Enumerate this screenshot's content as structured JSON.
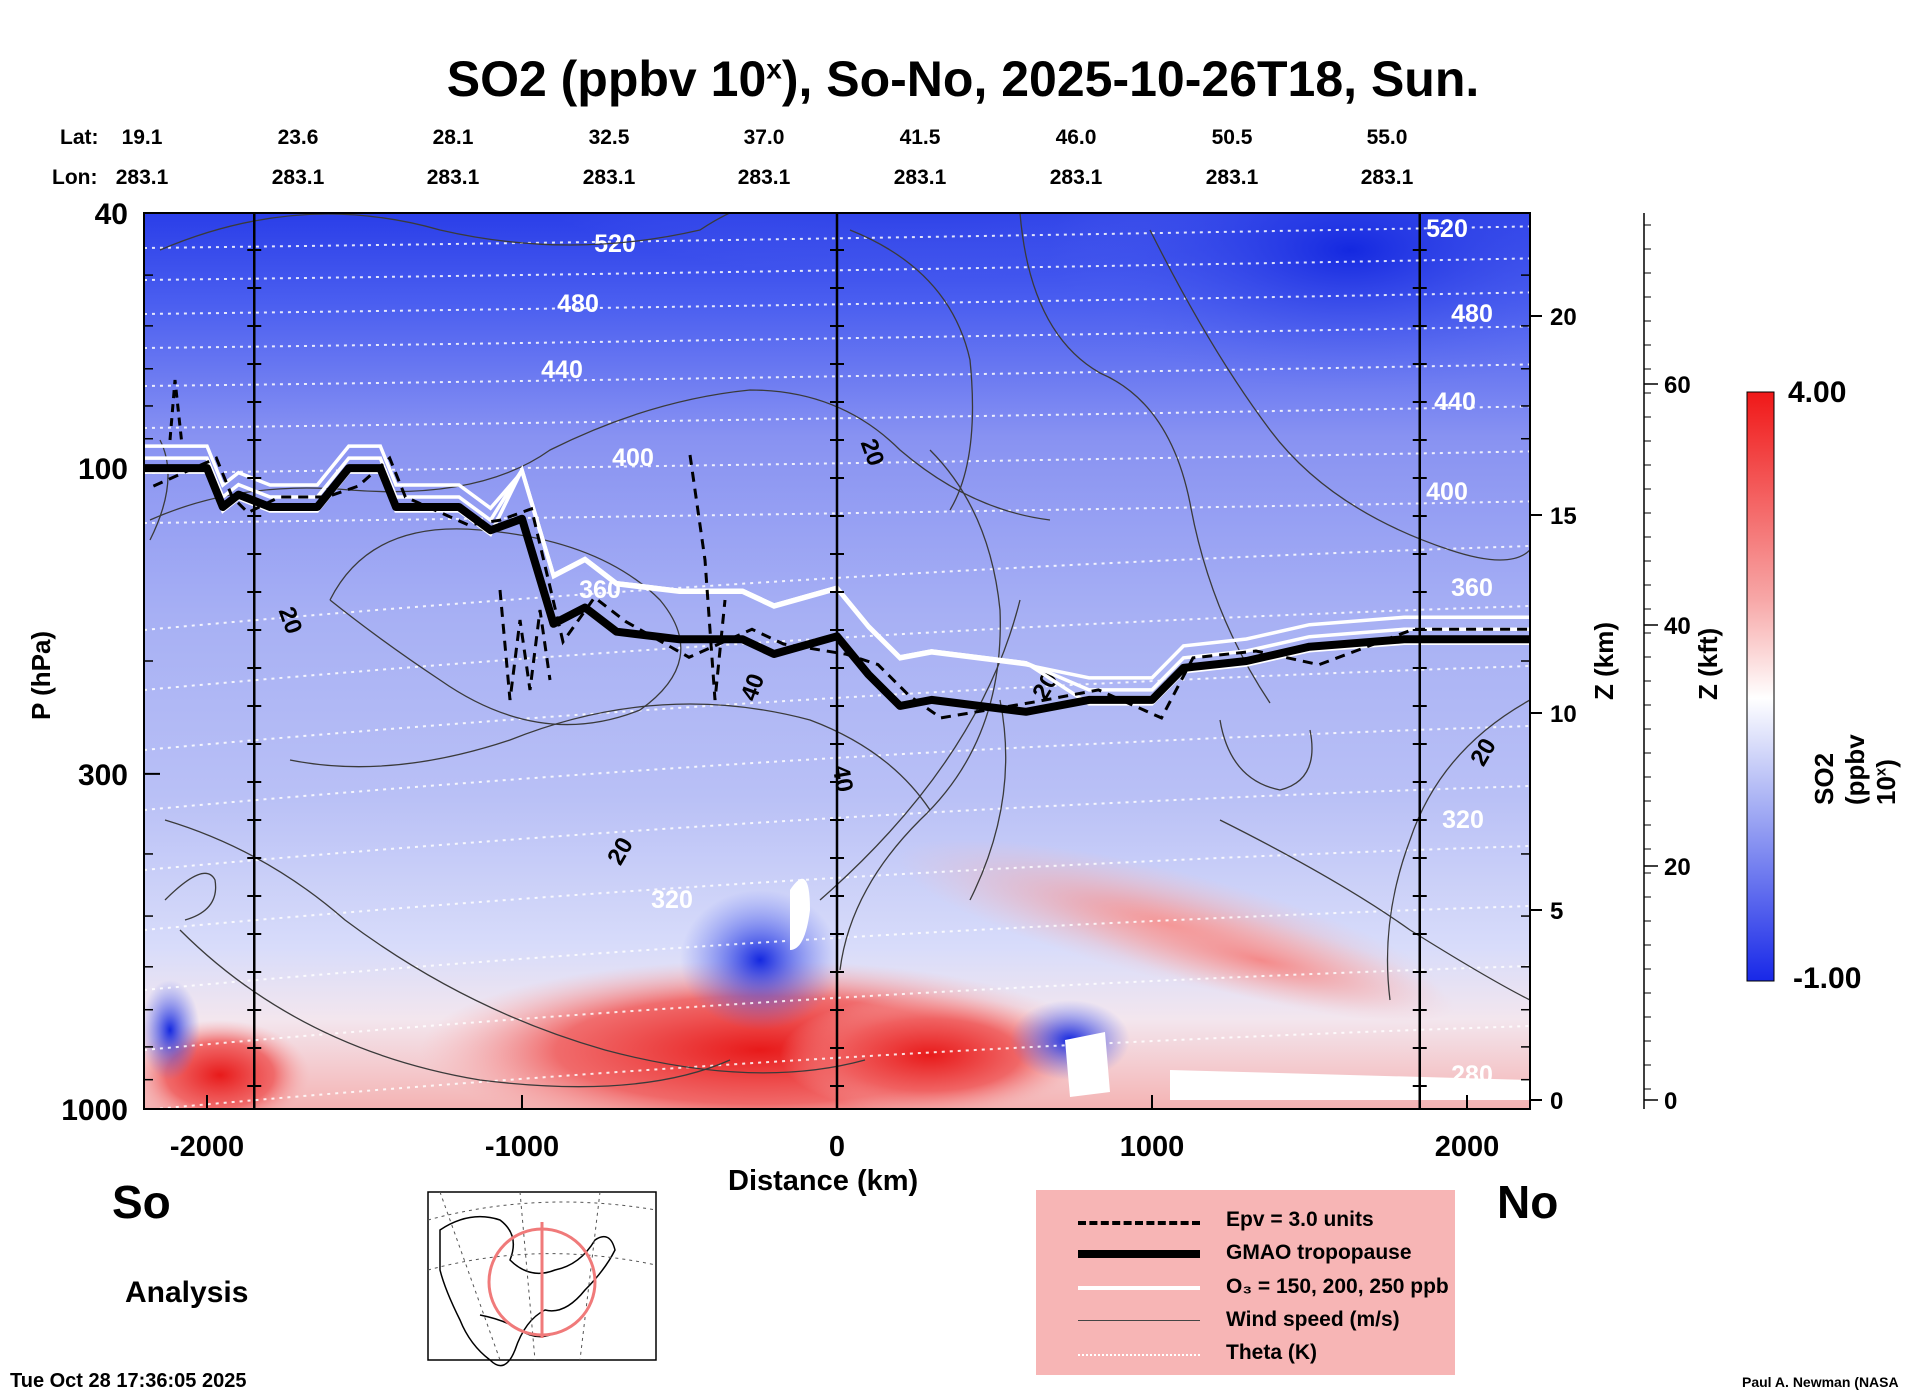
{
  "title": "SO2 (ppbv 10ˣ), So-No, 2025-10-26T18, Sun.",
  "title_parts": {
    "main": "SO2 (ppbv 10",
    "sup": "x",
    "rest": "), So-No, 2025-10-26T18, Sun."
  },
  "header": {
    "lat_label": "Lat:",
    "lon_label": "Lon:",
    "lats": [
      "19.1",
      "23.6",
      "28.1",
      "32.5",
      "37.0",
      "41.5",
      "46.0",
      "50.5",
      "55.0"
    ],
    "lons": [
      "283.1",
      "283.1",
      "283.1",
      "283.1",
      "283.1",
      "283.1",
      "283.1",
      "283.1",
      "283.1"
    ]
  },
  "axes": {
    "ylabel": "P (hPa)",
    "xlabel": "Distance (km)",
    "z_km_label": "Z (km)",
    "z_kft_label": "Z (kft)",
    "p_ticks": [
      "40",
      "100",
      "300",
      "1000"
    ],
    "x_ticks": [
      "-2000",
      "-1000",
      "0",
      "1000",
      "2000"
    ],
    "z_km_ticks": [
      "20",
      "15",
      "10",
      "5",
      "0"
    ],
    "z_kft_ticks": [
      "60",
      "40",
      "20",
      "0"
    ]
  },
  "colorbar": {
    "label": "SO2 (ppbv 10ˣ)",
    "max_label": "4.00",
    "min_label": "-1.00",
    "colors": {
      "high": "#f01818",
      "mid": "#ffffff",
      "low": "#1828e8"
    }
  },
  "endpoints": {
    "left": "So",
    "right": "No"
  },
  "analysis_label": "Analysis",
  "timestamp": "Tue Oct 28 17:36:05 2025",
  "credit": "Paul A. Newman (NASA",
  "legend": {
    "epv": "Epv = 3.0 units",
    "tropopause": "GMAO tropopause",
    "ozone": "O₃ = 150, 200, 250 ppb",
    "wind": "Wind speed (m/s)",
    "theta": "Theta (K)"
  },
  "theta_labels": [
    "520",
    "480",
    "440",
    "400",
    "360",
    "320",
    "280"
  ],
  "wind_labels": [
    "20",
    "40"
  ],
  "chart_data": {
    "type": "heatmap",
    "title": "SO2 (ppbv 10ˣ), So-No, 2025-10-26T18, Sun.",
    "xlabel": "Distance (km)",
    "ylabel": "P (hPa)",
    "xlim": [
      -2200,
      2200
    ],
    "ylim_hpa": [
      1000,
      40
    ],
    "y_scale": "log",
    "colorbar_range": [
      -1.0,
      4.0
    ],
    "tropopause_hpa": [
      [
        -2200,
        100
      ],
      [
        -2000,
        100
      ],
      [
        -1950,
        115
      ],
      [
        -1900,
        110
      ],
      [
        -1800,
        115
      ],
      [
        -1650,
        115
      ],
      [
        -1550,
        100
      ],
      [
        -1450,
        100
      ],
      [
        -1400,
        115
      ],
      [
        -1200,
        115
      ],
      [
        -1100,
        125
      ],
      [
        -1000,
        120
      ],
      [
        -900,
        175
      ],
      [
        -800,
        165
      ],
      [
        -700,
        180
      ],
      [
        -500,
        185
      ],
      [
        -300,
        185
      ],
      [
        -200,
        195
      ],
      [
        0,
        183
      ],
      [
        100,
        210
      ],
      [
        200,
        235
      ],
      [
        300,
        230
      ],
      [
        600,
        240
      ],
      [
        800,
        230
      ],
      [
        1000,
        230
      ],
      [
        1100,
        205
      ],
      [
        1300,
        200
      ],
      [
        1500,
        190
      ],
      [
        1800,
        185
      ],
      [
        2200,
        185
      ]
    ],
    "so2_features": [
      {
        "region": "boundary layer -1000 to 400 km",
        "value": "high (red, ~2-4)"
      },
      {
        "region": "500-1800 km, 500-700 hPa",
        "value": "elevated (red, ~1-2)"
      },
      {
        "region": "stratosphere north",
        "value": "low (blue, ~-0.5 to -1)"
      }
    ]
  }
}
